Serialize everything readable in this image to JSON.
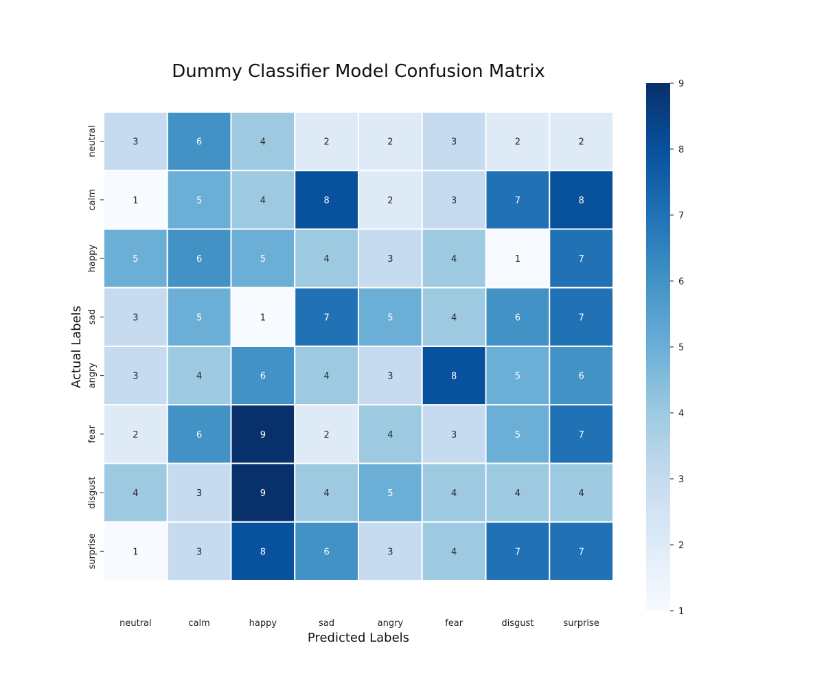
{
  "chart_data": {
    "type": "heatmap",
    "title": "Dummy Classifier Model Confusion Matrix",
    "xlabel": "Predicted Labels",
    "ylabel": "Actual Labels",
    "x_categories": [
      "neutral",
      "calm",
      "happy",
      "sad",
      "angry",
      "fear",
      "disgust",
      "surprise"
    ],
    "y_categories": [
      "neutral",
      "calm",
      "happy",
      "sad",
      "angry",
      "fear",
      "disgust",
      "surprise"
    ],
    "values": [
      [
        3,
        6,
        4,
        2,
        2,
        3,
        2,
        2
      ],
      [
        1,
        5,
        4,
        8,
        2,
        3,
        7,
        8
      ],
      [
        5,
        6,
        5,
        4,
        3,
        4,
        1,
        7
      ],
      [
        3,
        5,
        1,
        7,
        5,
        4,
        6,
        7
      ],
      [
        3,
        4,
        6,
        4,
        3,
        8,
        5,
        6
      ],
      [
        2,
        6,
        9,
        2,
        4,
        3,
        5,
        7
      ],
      [
        4,
        3,
        9,
        4,
        5,
        4,
        4,
        4
      ],
      [
        1,
        3,
        8,
        6,
        3,
        4,
        7,
        7
      ]
    ],
    "colorbar": {
      "min": 1,
      "max": 9,
      "ticks": [
        1,
        2,
        3,
        4,
        5,
        6,
        7,
        8,
        9
      ],
      "colormap": "Blues"
    },
    "annotations": true,
    "grid": false
  }
}
